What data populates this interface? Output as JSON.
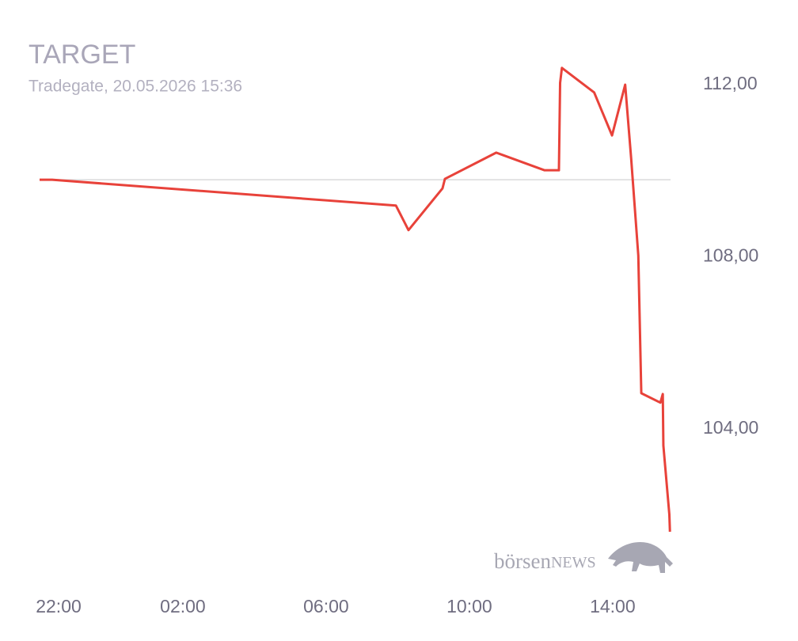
{
  "chart_data": {
    "type": "line",
    "title": "TARGET",
    "subtitle": "Tradegate, 20.05.2026 15:36",
    "watermark": [
      "börsen",
      "NEWS"
    ],
    "x": [
      "22:00",
      "22:21",
      "07:57",
      "08:18",
      "09:15",
      "09:19",
      "10:45",
      "12:06",
      "12:30",
      "12:32",
      "12:35",
      "13:29",
      "13:59",
      "14:21",
      "14:31",
      "14:43",
      "14:48",
      "15:20",
      "15:24",
      "15:25",
      "15:35",
      "15:36"
    ],
    "series": [
      {
        "name": "TARGET",
        "color": "#e8423a",
        "values": [
          109.79,
          109.79,
          109.19,
          108.62,
          109.59,
          109.81,
          110.42,
          110.01,
          110.01,
          112.04,
          112.39,
          111.82,
          110.82,
          112.0,
          110.29,
          108.03,
          104.83,
          104.61,
          104.81,
          103.61,
          102.01,
          101.61
        ]
      }
    ],
    "reference_line": 109.79,
    "xlim": [
      "22:00",
      "15:37"
    ],
    "xticks": [
      "22:00",
      "02:00",
      "06:00",
      "10:00",
      "14:00"
    ],
    "ylim": [
      101,
      113
    ],
    "yticks": [
      {
        "value": 104,
        "label": "104,00"
      },
      {
        "value": 108,
        "label": "108,00"
      },
      {
        "value": 112,
        "label": "112,00"
      }
    ]
  }
}
